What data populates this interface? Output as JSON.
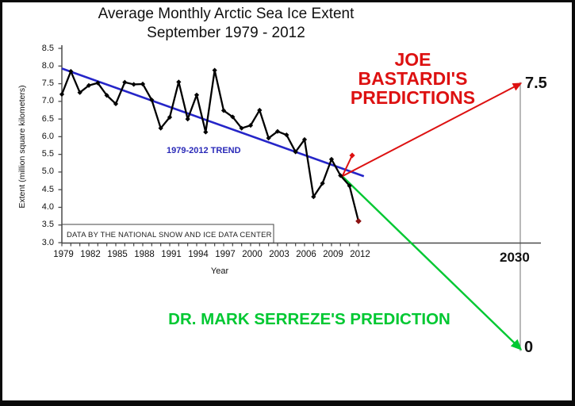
{
  "chart_data": {
    "type": "line",
    "title": "Average Monthly Arctic Sea Ice Extent",
    "subtitle": "September 1979 - 2012",
    "xlabel": "Year",
    "ylabel": "Extent (million square kilometers)",
    "credit": "DATA BY THE NATIONAL SNOW AND ICE DATA CENTER",
    "ylim": [
      3.0,
      8.5
    ],
    "xlim": [
      1979,
      2012
    ],
    "grid": false,
    "y_ticks": [
      8.5,
      8.0,
      7.5,
      7.0,
      6.5,
      6.0,
      5.5,
      5.0,
      4.5,
      4.0,
      3.5,
      3.0
    ],
    "x_tick_years": [
      1979,
      1982,
      1985,
      1988,
      1991,
      1994,
      1997,
      2000,
      2003,
      2006,
      2009,
      2012
    ],
    "series": {
      "name": "September Arctic sea ice extent (million sq km)",
      "years": [
        1979,
        1980,
        1981,
        1982,
        1983,
        1984,
        1985,
        1986,
        1987,
        1988,
        1989,
        1990,
        1991,
        1992,
        1993,
        1994,
        1995,
        1996,
        1997,
        1998,
        1999,
        2000,
        2001,
        2002,
        2003,
        2004,
        2005,
        2006,
        2007,
        2008,
        2009,
        2010,
        2011,
        2012
      ],
      "values": [
        7.2,
        7.85,
        7.25,
        7.45,
        7.52,
        7.17,
        6.93,
        7.54,
        7.48,
        7.49,
        7.04,
        6.24,
        6.55,
        7.55,
        6.5,
        7.18,
        6.13,
        7.88,
        6.74,
        6.56,
        6.24,
        6.32,
        6.75,
        5.96,
        6.15,
        6.05,
        5.57,
        5.92,
        4.3,
        4.68,
        5.36,
        4.9,
        4.61,
        3.61
      ]
    },
    "trend": {
      "label": "1979-2012 TREND",
      "from": {
        "year": 1979,
        "value": 7.93
      },
      "to": {
        "year": 2012.6,
        "value": 4.88
      }
    },
    "predictions": {
      "year_label": "2030",
      "bastardi": {
        "label": "JOE\nBASTARDI'S\nPREDICTIONS",
        "end_label": "7.5",
        "short_segment": {
          "from": {
            "year": 2010.2,
            "value": 4.88
          },
          "to": {
            "year": 2011.3,
            "value": 5.47
          }
        },
        "line": {
          "from": {
            "year": 2010.2,
            "value": 4.88
          },
          "to": {
            "year": 2030,
            "value": 7.5
          }
        }
      },
      "serreze": {
        "label": "DR. MARK SERREZE'S PREDICTION",
        "end_label": "0",
        "line": {
          "from": {
            "year": 2010.2,
            "value": 4.88
          },
          "to": {
            "year": 2030,
            "value": 0
          }
        }
      }
    },
    "colors": {
      "data": "#000000",
      "final_marker": "#8b1212",
      "trend": "#2525c8",
      "trend_label": "#2a2ab8",
      "bastardi": "#dd1111",
      "serreze": "#00c832",
      "axis": "#4a4a4a",
      "ref_line": "#888888",
      "text": "#111111"
    }
  }
}
